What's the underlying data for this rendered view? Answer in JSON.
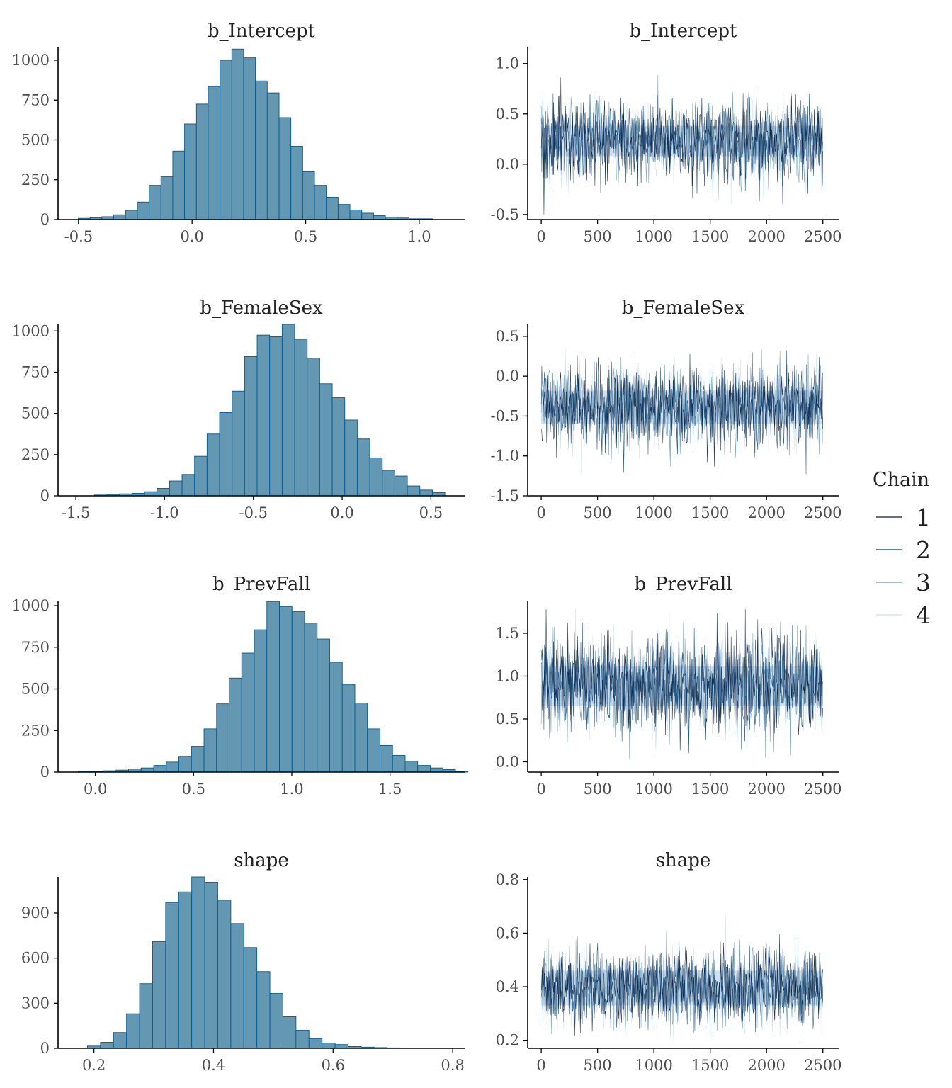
{
  "colors": {
    "bar_fill": "#6497b1",
    "bar_stroke": "#005b96",
    "chains": [
      "#011f4b",
      "#03396c",
      "#6497b1",
      "#d1e1ec"
    ],
    "axis": "#000000",
    "text": "#4d4d4d"
  },
  "legend": {
    "title": "Chain",
    "items": [
      "1",
      "2",
      "3",
      "4"
    ]
  },
  "chart_data": [
    {
      "type": "bar",
      "panel": "histogram",
      "title": "b_Intercept",
      "bin_width": 0.052,
      "first_bin_center": -0.475,
      "values": [
        8,
        12,
        18,
        30,
        58,
        110,
        215,
        270,
        430,
        600,
        725,
        835,
        1000,
        1070,
        1015,
        870,
        795,
        640,
        460,
        300,
        215,
        140,
        95,
        60,
        40,
        25,
        15,
        10,
        5,
        5
      ],
      "xlim": [
        -0.59,
        1.2
      ],
      "ylim": [
        0,
        1080
      ],
      "xticks": [
        "-0.5",
        "0.0",
        "0.5",
        "1.0"
      ],
      "xtick_values": [
        -0.5,
        0,
        0.5,
        1.0
      ],
      "yticks": [
        "0",
        "250",
        "500",
        "750",
        "1000"
      ],
      "ytick_values": [
        0,
        250,
        500,
        750,
        1000
      ]
    },
    {
      "type": "line",
      "panel": "trace",
      "title": "b_Intercept",
      "mean": 0.23,
      "sd": 0.2,
      "band": [
        0.08,
        0.38
      ],
      "range": [
        -0.5,
        1.1
      ],
      "xlim": [
        -120,
        2640
      ],
      "ylim": [
        -0.55,
        1.16
      ],
      "xticks": [
        "0",
        "500",
        "1000",
        "1500",
        "2000",
        "2500"
      ],
      "xtick_values": [
        0,
        500,
        1000,
        1500,
        2000,
        2500
      ],
      "yticks": [
        "-0.5",
        "0.0",
        "0.5",
        "1.0"
      ],
      "ytick_values": [
        -0.5,
        0,
        0.5,
        1.0
      ]
    },
    {
      "type": "bar",
      "panel": "histogram",
      "title": "b_FemaleSex",
      "bin_width": 0.0705,
      "first_bin_center": -1.36,
      "values": [
        5,
        8,
        12,
        15,
        25,
        45,
        90,
        130,
        240,
        375,
        505,
        635,
        845,
        975,
        965,
        1040,
        950,
        835,
        680,
        595,
        460,
        345,
        230,
        155,
        120,
        60,
        35,
        20
      ],
      "xlim": [
        -1.6,
        0.69
      ],
      "ylim": [
        0,
        1040
      ],
      "xticks": [
        "-1.5",
        "-1.0",
        "-0.5",
        "0.0",
        "0.5"
      ],
      "xtick_values": [
        -1.5,
        -1.0,
        -0.5,
        0,
        0.5
      ],
      "yticks": [
        "0",
        "250",
        "500",
        "750",
        "1000"
      ],
      "ytick_values": [
        0,
        250,
        500,
        750,
        1000
      ]
    },
    {
      "type": "line",
      "panel": "trace",
      "title": "b_FemaleSex",
      "mean": -0.38,
      "sd": 0.25,
      "band": [
        -0.6,
        -0.18
      ],
      "range": [
        -1.45,
        0.58
      ],
      "xlim": [
        -120,
        2640
      ],
      "ylim": [
        -1.5,
        0.65
      ],
      "xticks": [
        "0",
        "500",
        "1000",
        "1500",
        "2000",
        "2500"
      ],
      "xtick_values": [
        0,
        500,
        1000,
        1500,
        2000,
        2500
      ],
      "yticks": [
        "-1.5",
        "-1.0",
        "-0.5",
        "0.0",
        "0.5"
      ],
      "ytick_values": [
        -1.5,
        -1.0,
        -0.5,
        0,
        0.5
      ]
    },
    {
      "type": "bar",
      "panel": "histogram",
      "title": "b_PrevFall",
      "bin_width": 0.064,
      "first_bin_center": -0.055,
      "values": [
        5,
        3,
        8,
        12,
        18,
        25,
        40,
        60,
        95,
        155,
        260,
        410,
        565,
        715,
        855,
        1025,
        995,
        965,
        895,
        800,
        660,
        525,
        415,
        260,
        160,
        100,
        65,
        40,
        25,
        15,
        5
      ],
      "xlim": [
        -0.19,
        1.88
      ],
      "ylim": [
        0,
        1030
      ],
      "xticks": [
        "0.0",
        "0.5",
        "1.0",
        "1.5"
      ],
      "xtick_values": [
        0,
        0.5,
        1.0,
        1.5
      ],
      "yticks": [
        "0",
        "250",
        "500",
        "750",
        "1000"
      ],
      "ytick_values": [
        0,
        250,
        500,
        750,
        1000
      ]
    },
    {
      "type": "line",
      "panel": "trace",
      "title": "b_PrevFall",
      "mean": 0.9,
      "sd": 0.28,
      "band": [
        0.65,
        1.12
      ],
      "range": [
        0.0,
        1.78
      ],
      "xlim": [
        -120,
        2640
      ],
      "ylim": [
        -0.12,
        1.88
      ],
      "xticks": [
        "0",
        "500",
        "1000",
        "1500",
        "2000",
        "2500"
      ],
      "xtick_values": [
        0,
        500,
        1000,
        1500,
        2000,
        2500
      ],
      "yticks": [
        "0.0",
        "0.5",
        "1.0",
        "1.5"
      ],
      "ytick_values": [
        0,
        0.5,
        1.0,
        1.5
      ]
    },
    {
      "type": "bar",
      "panel": "histogram",
      "title": "shape",
      "bin_width": 0.0218,
      "first_bin_center": 0.2,
      "values": [
        15,
        40,
        105,
        230,
        430,
        710,
        970,
        1040,
        1140,
        1105,
        985,
        830,
        670,
        510,
        365,
        210,
        120,
        65,
        35,
        25,
        12,
        8,
        5,
        3
      ],
      "xlim": [
        0.14,
        0.82
      ],
      "ylim": [
        0,
        1140
      ],
      "xticks": [
        "0.2",
        "0.4",
        "0.6",
        "0.8"
      ],
      "xtick_values": [
        0.2,
        0.4,
        0.6,
        0.8
      ],
      "yticks": [
        "0",
        "300",
        "600",
        "900"
      ],
      "ytick_values": [
        0,
        300,
        600,
        900
      ]
    },
    {
      "type": "line",
      "panel": "trace",
      "title": "shape",
      "mean": 0.395,
      "sd": 0.07,
      "band": [
        0.33,
        0.46
      ],
      "range": [
        0.2,
        0.78
      ],
      "xlim": [
        -120,
        2640
      ],
      "ylim": [
        0.17,
        0.81
      ],
      "xticks": [
        "0",
        "500",
        "1000",
        "1500",
        "2000",
        "2500"
      ],
      "xtick_values": [
        0,
        500,
        1000,
        1500,
        2000,
        2500
      ],
      "yticks": [
        "0.2",
        "0.4",
        "0.6",
        "0.8"
      ],
      "ytick_values": [
        0.2,
        0.4,
        0.6,
        0.8
      ]
    }
  ]
}
